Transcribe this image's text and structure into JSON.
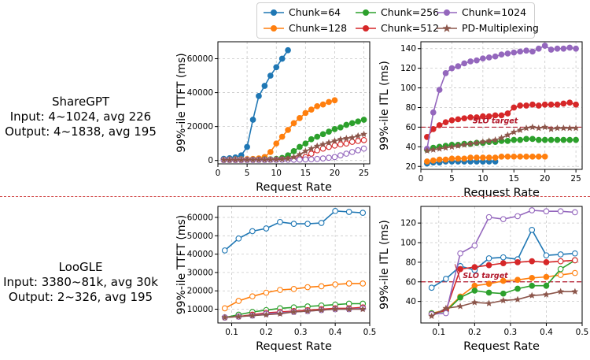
{
  "colors": {
    "chunk64": "#1f77b4",
    "chunk128": "#ff7f0e",
    "chunk256": "#2ca02c",
    "chunk512": "#d62728",
    "chunk1024": "#9467bd",
    "pd": "#8c564b",
    "divider": "#d24b4b",
    "slo": "#b2182b"
  },
  "legend": [
    {
      "name": "Chunk=64",
      "color": "#1f77b4",
      "marker": "circle"
    },
    {
      "name": "Chunk=128",
      "color": "#ff7f0e",
      "marker": "circle"
    },
    {
      "name": "Chunk=256",
      "color": "#2ca02c",
      "marker": "circle"
    },
    {
      "name": "Chunk=512",
      "color": "#d62728",
      "marker": "circle"
    },
    {
      "name": "Chunk=1024",
      "color": "#9467bd",
      "marker": "circle"
    },
    {
      "name": "PD-Multiplexing",
      "color": "#8c564b",
      "marker": "star"
    }
  ],
  "datasets": [
    {
      "line1": "ShareGPT",
      "line2": "Input: 4~1024, avg 226",
      "line3": "Output: 4~1838, avg 195"
    },
    {
      "line1": "LooGLE",
      "line2": "Input: 3380~81k, avg 30k",
      "line3": "Output: 2~326, avg 195"
    }
  ],
  "chart_data": [
    {
      "type": "line",
      "xlabel": "Request Rate",
      "ylabel": "99%-ile TTFT (ms)",
      "xlim": [
        0,
        26
      ],
      "ylim": [
        -2000,
        70000
      ],
      "xticks": [
        0,
        5,
        10,
        15,
        20,
        25
      ],
      "yticks": [
        0,
        20000,
        40000,
        60000
      ],
      "grid": true,
      "series": [
        {
          "name": "Chunk=64",
          "x": [
            1,
            2,
            3,
            4,
            5,
            6,
            7,
            8,
            9,
            10,
            11,
            12
          ],
          "y": [
            1000,
            1300,
            1800,
            3000,
            8000,
            24000,
            38000,
            44000,
            50000,
            55000,
            60000,
            65000
          ]
        },
        {
          "name": "Chunk=128",
          "x": [
            1,
            2,
            3,
            4,
            5,
            6,
            7,
            8,
            9,
            10,
            11,
            12,
            13,
            14,
            15,
            16,
            17,
            18,
            19,
            20
          ],
          "y": [
            400,
            500,
            600,
            700,
            800,
            900,
            1200,
            2000,
            5000,
            10000,
            14000,
            18000,
            22000,
            25000,
            28000,
            30000,
            32000,
            33000,
            34500,
            35500
          ]
        },
        {
          "name": "Chunk=256",
          "x": [
            1,
            2,
            3,
            4,
            5,
            6,
            7,
            8,
            9,
            10,
            11,
            12,
            13,
            14,
            15,
            16,
            17,
            18,
            19,
            20,
            21,
            22,
            23,
            24,
            25
          ],
          "y": [
            300,
            300,
            350,
            400,
            400,
            450,
            500,
            600,
            700,
            900,
            1500,
            3000,
            5500,
            8000,
            10000,
            12500,
            14000,
            15500,
            17000,
            18500,
            19500,
            21000,
            22000,
            23000,
            24000
          ]
        },
        {
          "name": "Chunk=512",
          "x": [
            1,
            2,
            3,
            4,
            5,
            6,
            7,
            8,
            9,
            10,
            11,
            12,
            13,
            14,
            15,
            16,
            17,
            18,
            19,
            20,
            21,
            22,
            23,
            24,
            25
          ],
          "y": [
            300,
            300,
            300,
            300,
            350,
            350,
            400,
            400,
            450,
            500,
            600,
            700,
            900,
            1200,
            2000,
            4000,
            6000,
            7000,
            8000,
            8800,
            9500,
            10000,
            11000,
            11500,
            12000
          ]
        },
        {
          "name": "Chunk=1024",
          "x": [
            1,
            2,
            3,
            4,
            5,
            6,
            7,
            8,
            9,
            10,
            11,
            12,
            13,
            14,
            15,
            16,
            17,
            18,
            19,
            20,
            21,
            22,
            23,
            24,
            25
          ],
          "y": [
            300,
            300,
            300,
            300,
            300,
            300,
            300,
            300,
            350,
            350,
            400,
            400,
            450,
            500,
            600,
            700,
            900,
            1200,
            1600,
            2000,
            3000,
            4000,
            5000,
            6000,
            7000
          ]
        },
        {
          "name": "PD-Multiplexing",
          "x": [
            1,
            2,
            3,
            4,
            5,
            6,
            7,
            8,
            9,
            10,
            11,
            12,
            13,
            14,
            15,
            16,
            17,
            18,
            19,
            20,
            21,
            22,
            23,
            24,
            25
          ],
          "y": [
            300,
            300,
            300,
            300,
            350,
            350,
            400,
            400,
            450,
            500,
            700,
            1000,
            2000,
            3500,
            5500,
            7000,
            8500,
            9500,
            10500,
            11500,
            12500,
            13000,
            13500,
            14500,
            15500
          ]
        }
      ]
    },
    {
      "type": "line",
      "xlabel": "Request Rate",
      "ylabel": "99%-ile ITL (ms)",
      "xlim": [
        0,
        26
      ],
      "ylim": [
        17,
        147
      ],
      "xticks": [
        0,
        5,
        10,
        15,
        20,
        25
      ],
      "yticks": [
        20,
        40,
        60,
        80,
        100,
        120,
        140
      ],
      "grid": true,
      "slo": {
        "value": 60,
        "label": "SLO target"
      },
      "series": [
        {
          "name": "Chunk=64",
          "x": [
            1,
            2,
            3,
            4,
            5,
            6,
            7,
            8,
            9,
            10,
            11,
            12
          ],
          "y": [
            23,
            24,
            24,
            25,
            25,
            25,
            25,
            25,
            25,
            25,
            25,
            25
          ]
        },
        {
          "name": "Chunk=128",
          "x": [
            1,
            2,
            3,
            4,
            5,
            6,
            7,
            8,
            9,
            10,
            11,
            12,
            13,
            14,
            15,
            16,
            17,
            18,
            19,
            20
          ],
          "y": [
            25,
            26,
            27,
            27,
            28,
            28,
            28,
            29,
            29,
            29,
            29,
            29,
            30,
            30,
            30,
            30,
            30,
            30,
            30,
            30
          ]
        },
        {
          "name": "Chunk=256",
          "x": [
            1,
            2,
            3,
            4,
            5,
            6,
            7,
            8,
            9,
            10,
            11,
            12,
            13,
            14,
            15,
            16,
            17,
            18,
            19,
            20,
            21,
            22,
            23,
            24,
            25
          ],
          "y": [
            37,
            39,
            40,
            41,
            42,
            42,
            43,
            43,
            44,
            44,
            45,
            45,
            46,
            46,
            47,
            47,
            48,
            48,
            47,
            47,
            47,
            47,
            47,
            47,
            47
          ]
        },
        {
          "name": "Chunk=512",
          "x": [
            1,
            2,
            3,
            4,
            5,
            6,
            7,
            8,
            9,
            10,
            11,
            12,
            13,
            14,
            15,
            16,
            17,
            18,
            19,
            20,
            21,
            22,
            23,
            24,
            25
          ],
          "y": [
            50,
            58,
            62,
            65,
            67,
            68,
            69,
            70,
            70,
            71,
            71,
            72,
            72,
            74,
            80,
            82,
            82,
            83,
            82,
            83,
            83,
            83,
            84,
            85,
            83
          ]
        },
        {
          "name": "Chunk=1024",
          "x": [
            1,
            2,
            3,
            4,
            5,
            6,
            7,
            8,
            9,
            10,
            11,
            12,
            13,
            14,
            15,
            16,
            17,
            18,
            19,
            20,
            21,
            22,
            23,
            24,
            25
          ],
          "y": [
            38,
            75,
            98,
            115,
            120,
            122,
            125,
            127,
            128,
            130,
            131,
            132,
            134,
            135,
            136,
            137,
            138,
            137,
            140,
            143,
            139,
            140,
            140,
            141,
            140
          ]
        },
        {
          "name": "PD-Multiplexing",
          "x": [
            1,
            2,
            3,
            4,
            5,
            6,
            7,
            8,
            9,
            10,
            11,
            12,
            13,
            14,
            15,
            16,
            17,
            18,
            19,
            20,
            21,
            22,
            23,
            24,
            25
          ],
          "y": [
            36,
            37,
            38,
            39,
            40,
            41,
            42,
            43,
            44,
            45,
            46,
            47,
            49,
            52,
            55,
            57,
            59,
            60,
            59,
            60,
            58,
            59,
            59,
            59,
            59
          ]
        }
      ]
    },
    {
      "type": "line",
      "xlabel": "Request Rate",
      "ylabel": "99%-ile TTFT (ms)",
      "xlim": [
        0.06,
        0.5
      ],
      "ylim": [
        2500,
        66000
      ],
      "xticks": [
        0.1,
        0.2,
        0.3,
        0.4,
        0.5
      ],
      "yticks": [
        10000,
        20000,
        30000,
        40000,
        50000,
        60000
      ],
      "grid": true,
      "series": [
        {
          "name": "Chunk=64",
          "x": [
            0.08,
            0.12,
            0.16,
            0.2,
            0.24,
            0.28,
            0.32,
            0.36,
            0.4,
            0.44,
            0.48
          ],
          "y": [
            42000,
            48500,
            52500,
            54000,
            57500,
            56500,
            56500,
            57000,
            63500,
            63000,
            62500
          ]
        },
        {
          "name": "Chunk=128",
          "x": [
            0.08,
            0.12,
            0.16,
            0.2,
            0.24,
            0.28,
            0.32,
            0.36,
            0.4,
            0.44,
            0.48
          ],
          "y": [
            10500,
            14500,
            17000,
            19000,
            20500,
            21000,
            22000,
            22500,
            23500,
            24000,
            24000
          ]
        },
        {
          "name": "Chunk=256",
          "x": [
            0.08,
            0.12,
            0.16,
            0.2,
            0.24,
            0.28,
            0.32,
            0.36,
            0.4,
            0.44,
            0.48
          ],
          "y": [
            5500,
            7000,
            8500,
            9500,
            10500,
            11000,
            11500,
            12000,
            12500,
            13000,
            13000
          ]
        },
        {
          "name": "Chunk=512",
          "x": [
            0.08,
            0.12,
            0.16,
            0.2,
            0.24,
            0.28,
            0.32,
            0.36,
            0.4,
            0.44,
            0.48
          ],
          "y": [
            5500,
            6000,
            7000,
            8000,
            8500,
            9000,
            9500,
            10000,
            10500,
            10500,
            11000
          ]
        },
        {
          "name": "Chunk=1024",
          "x": [
            0.08,
            0.12,
            0.16,
            0.2,
            0.24,
            0.28,
            0.32,
            0.36,
            0.4,
            0.44,
            0.48
          ],
          "y": [
            5500,
            6000,
            6500,
            7500,
            8000,
            8500,
            9000,
            9500,
            10000,
            10000,
            10500
          ]
        },
        {
          "name": "PD-Multiplexing",
          "x": [
            0.08,
            0.12,
            0.16,
            0.2,
            0.24,
            0.28,
            0.32,
            0.36,
            0.4,
            0.44,
            0.48
          ],
          "y": [
            5500,
            6000,
            6500,
            7000,
            7500,
            8500,
            9000,
            9500,
            10000,
            10000,
            10000
          ]
        }
      ]
    },
    {
      "type": "line",
      "xlabel": "Request Rate",
      "ylabel": "99%-ile ITL (ms)",
      "xlim": [
        0.05,
        0.5
      ],
      "ylim": [
        18,
        137
      ],
      "xticks": [
        0.1,
        0.2,
        0.3,
        0.4,
        0.5
      ],
      "yticks": [
        40,
        60,
        80,
        100,
        120
      ],
      "grid": true,
      "slo": {
        "value": 60,
        "label": "SLO target"
      },
      "series": [
        {
          "name": "Chunk=64",
          "x": [
            0.08,
            0.12,
            0.16,
            0.2,
            0.24,
            0.28,
            0.32,
            0.36,
            0.4,
            0.44,
            0.48
          ],
          "y": [
            54,
            63,
            76,
            72,
            84,
            85,
            83,
            113,
            87,
            88,
            89
          ]
        },
        {
          "name": "Chunk=128",
          "x": [
            0.08,
            0.12,
            0.16,
            0.2,
            0.24,
            0.28,
            0.32,
            0.36,
            0.4,
            0.44,
            0.48
          ],
          "y": [
            28,
            31,
            45,
            56,
            58,
            61,
            62,
            64,
            65,
            67,
            69
          ]
        },
        {
          "name": "Chunk=256",
          "x": [
            0.08,
            0.12,
            0.16,
            0.2,
            0.24,
            0.28,
            0.32,
            0.36,
            0.4,
            0.44,
            0.48
          ],
          "y": [
            28,
            30,
            44,
            51,
            49,
            48,
            53,
            56,
            56,
            73,
            82
          ]
        },
        {
          "name": "Chunk=512",
          "x": [
            0.08,
            0.12,
            0.16,
            0.2,
            0.24,
            0.28,
            0.32,
            0.36,
            0.4,
            0.44,
            0.48
          ],
          "y": [
            27,
            31,
            73,
            75,
            77,
            79,
            80,
            81,
            80,
            81,
            82
          ]
        },
        {
          "name": "Chunk=1024",
          "x": [
            0.08,
            0.12,
            0.16,
            0.2,
            0.24,
            0.28,
            0.32,
            0.36,
            0.4,
            0.44,
            0.48
          ],
          "y": [
            27,
            28,
            89,
            97,
            126,
            124,
            127,
            133,
            132,
            132,
            131
          ]
        },
        {
          "name": "PD-Multiplexing",
          "x": [
            0.08,
            0.12,
            0.16,
            0.2,
            0.24,
            0.28,
            0.32,
            0.36,
            0.4,
            0.44,
            0.48
          ],
          "y": [
            25,
            33,
            35,
            39,
            38,
            41,
            42,
            46,
            47,
            50,
            50
          ]
        }
      ]
    }
  ]
}
